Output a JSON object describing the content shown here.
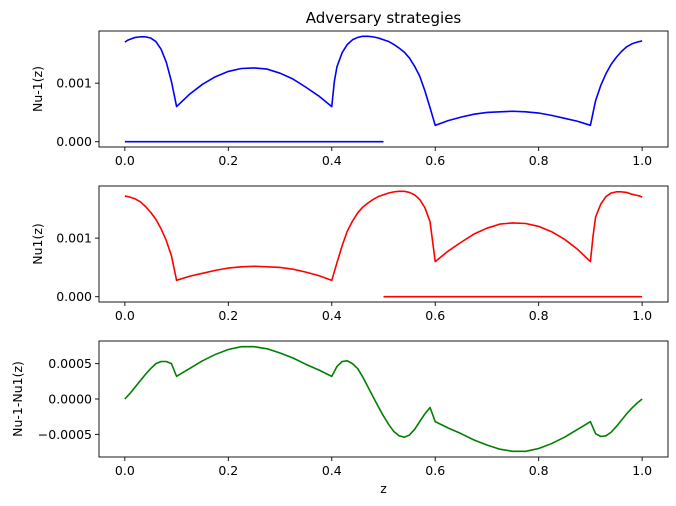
{
  "chart_data": [
    {
      "type": "line",
      "title": "Adversary strategies",
      "xlabel": "",
      "ylabel": "Nu-1(z)",
      "xlim": [
        -0.05,
        1.05
      ],
      "ylim": [
        -9e-05,
        0.00189
      ],
      "xticks": [
        0.0,
        0.2,
        0.4,
        0.6,
        0.8,
        1.0
      ],
      "xtick_labels": [
        "0.0",
        "0.2",
        "0.4",
        "0.6",
        "0.8",
        "1.0"
      ],
      "yticks": [
        0.0,
        0.001
      ],
      "ytick_labels": [
        "0.000",
        "0.001"
      ],
      "grid": false,
      "color": "#0000ff",
      "series": [
        {
          "x": [
            0.0,
            0.005,
            0.01,
            0.02,
            0.03,
            0.04,
            0.05,
            0.06,
            0.07,
            0.08,
            0.09,
            0.1,
            0.1,
            0.125,
            0.15,
            0.175,
            0.2,
            0.225,
            0.25,
            0.275,
            0.3,
            0.325,
            0.35,
            0.375,
            0.4,
            0.4,
            0.405,
            0.41,
            0.42,
            0.43,
            0.44,
            0.45,
            0.46,
            0.47,
            0.48,
            0.49,
            0.5,
            0.51,
            0.52,
            0.53,
            0.54,
            0.55,
            0.56,
            0.57,
            0.58,
            0.59,
            0.6,
            0.6,
            0.625,
            0.65,
            0.675,
            0.7,
            0.725,
            0.75,
            0.775,
            0.8,
            0.825,
            0.85,
            0.875,
            0.9,
            0.9,
            0.91,
            0.92,
            0.93,
            0.94,
            0.95,
            0.96,
            0.97,
            0.98,
            0.99,
            1.0
          ],
          "y": [
            0.0017,
            0.00173,
            0.00175,
            0.00178,
            0.00179,
            0.00179,
            0.00177,
            0.00171,
            0.00158,
            0.00136,
            0.00103,
            0.0006,
            0.0006,
            0.00081,
            0.00098,
            0.00111,
            0.0012,
            0.00125,
            0.00126,
            0.00124,
            0.00117,
            0.00107,
            0.00093,
            0.00078,
            0.0006,
            0.0006,
            0.00103,
            0.00128,
            0.00152,
            0.00166,
            0.00174,
            0.00178,
            0.0018,
            0.0018,
            0.00179,
            0.00177,
            0.00174,
            0.00171,
            0.00166,
            0.0016,
            0.00153,
            0.00143,
            0.00129,
            0.00112,
            0.00087,
            0.00058,
            0.00028,
            0.00028,
            0.00036,
            0.00042,
            0.00047,
            0.0005,
            0.00051,
            0.00052,
            0.00051,
            0.00049,
            0.00045,
            0.0004,
            0.00035,
            0.00028,
            0.00028,
            0.0007,
            0.00096,
            0.00116,
            0.00132,
            0.00144,
            0.00154,
            0.00162,
            0.00167,
            0.0017,
            0.00172
          ]
        },
        {
          "x": [
            0.0,
            0.5
          ],
          "y": [
            0.0,
            0.0
          ]
        }
      ]
    },
    {
      "type": "line",
      "title": "",
      "xlabel": "",
      "ylabel": "Nu1(z)",
      "xlim": [
        -0.05,
        1.05
      ],
      "ylim": [
        -9e-05,
        0.00189
      ],
      "xticks": [
        0.0,
        0.2,
        0.4,
        0.6,
        0.8,
        1.0
      ],
      "xtick_labels": [
        "0.0",
        "0.2",
        "0.4",
        "0.6",
        "0.8",
        "1.0"
      ],
      "yticks": [
        0.0,
        0.001
      ],
      "ytick_labels": [
        "0.000",
        "0.001"
      ],
      "grid": false,
      "color": "#ff0000",
      "series": [
        {
          "x": [
            0.0,
            0.01,
            0.02,
            0.03,
            0.04,
            0.05,
            0.06,
            0.07,
            0.08,
            0.09,
            0.1,
            0.1,
            0.125,
            0.15,
            0.175,
            0.2,
            0.225,
            0.25,
            0.275,
            0.3,
            0.325,
            0.35,
            0.375,
            0.4,
            0.4,
            0.41,
            0.42,
            0.43,
            0.44,
            0.45,
            0.46,
            0.47,
            0.48,
            0.49,
            0.5,
            0.51,
            0.52,
            0.53,
            0.54,
            0.55,
            0.56,
            0.57,
            0.58,
            0.59,
            0.6,
            0.6,
            0.625,
            0.65,
            0.675,
            0.7,
            0.725,
            0.75,
            0.775,
            0.8,
            0.825,
            0.85,
            0.875,
            0.9,
            0.9,
            0.905,
            0.91,
            0.92,
            0.93,
            0.94,
            0.95,
            0.96,
            0.97,
            0.98,
            0.99,
            0.995,
            1.0
          ],
          "y": [
            0.00172,
            0.0017,
            0.00167,
            0.00162,
            0.00154,
            0.00144,
            0.00132,
            0.00116,
            0.00096,
            0.0007,
            0.00028,
            0.00028,
            0.00035,
            0.0004,
            0.00045,
            0.00049,
            0.00051,
            0.00052,
            0.00051,
            0.0005,
            0.00047,
            0.00042,
            0.00036,
            0.00028,
            0.00028,
            0.00058,
            0.00087,
            0.00112,
            0.00129,
            0.00143,
            0.00153,
            0.0016,
            0.00166,
            0.00171,
            0.00174,
            0.00177,
            0.00179,
            0.0018,
            0.0018,
            0.00178,
            0.00174,
            0.00166,
            0.00152,
            0.00128,
            0.0006,
            0.0006,
            0.00078,
            0.00093,
            0.00107,
            0.00117,
            0.00124,
            0.00126,
            0.00125,
            0.0012,
            0.00111,
            0.00098,
            0.00081,
            0.0006,
            0.0006,
            0.00103,
            0.00136,
            0.00158,
            0.00171,
            0.00177,
            0.00179,
            0.00179,
            0.00178,
            0.00175,
            0.00173,
            0.00172,
            0.0017
          ]
        },
        {
          "x": [
            0.5,
            1.0
          ],
          "y": [
            0.0,
            0.0
          ]
        }
      ]
    },
    {
      "type": "line",
      "title": "",
      "xlabel": "z",
      "ylabel": "Nu-1-Nu1(z)",
      "xlim": [
        -0.05,
        1.05
      ],
      "ylim": [
        -0.00082,
        0.00082
      ],
      "xticks": [
        0.0,
        0.2,
        0.4,
        0.6,
        0.8,
        1.0
      ],
      "xtick_labels": [
        "0.0",
        "0.2",
        "0.4",
        "0.6",
        "0.8",
        "1.0"
      ],
      "yticks": [
        0.0005,
        0.0,
        -0.0005
      ],
      "ytick_labels": [
        "0.0005",
        "0.0000",
        "−0.0005"
      ],
      "grid": false,
      "color": "#008000",
      "series": [
        {
          "x": [
            0.0,
            0.01,
            0.02,
            0.03,
            0.04,
            0.05,
            0.06,
            0.07,
            0.08,
            0.09,
            0.1,
            0.1,
            0.125,
            0.15,
            0.175,
            0.2,
            0.225,
            0.25,
            0.275,
            0.3,
            0.325,
            0.35,
            0.375,
            0.4,
            0.4,
            0.41,
            0.42,
            0.43,
            0.44,
            0.45,
            0.46,
            0.47,
            0.48,
            0.49,
            0.5,
            0.51,
            0.52,
            0.53,
            0.54,
            0.55,
            0.56,
            0.57,
            0.58,
            0.59,
            0.6,
            0.6,
            0.625,
            0.65,
            0.675,
            0.7,
            0.725,
            0.75,
            0.775,
            0.8,
            0.825,
            0.85,
            0.875,
            0.9,
            0.9,
            0.91,
            0.92,
            0.93,
            0.94,
            0.95,
            0.96,
            0.97,
            0.98,
            0.99,
            1.0
          ],
          "y": [
            0.0,
            8e-05,
            0.00017,
            0.00026,
            0.00035,
            0.00043,
            0.0005,
            0.00053,
            0.00053,
            0.0005,
            0.00032,
            0.00032,
            0.00043,
            0.00054,
            0.00063,
            0.0007,
            0.00074,
            0.00074,
            0.00071,
            0.00065,
            0.00058,
            0.00049,
            0.00041,
            0.00032,
            0.00032,
            0.00046,
            0.00053,
            0.00054,
            0.0005,
            0.00043,
            0.00031,
            0.00017,
            3e-05,
            -0.00011,
            -0.00024,
            -0.00036,
            -0.00046,
            -0.00052,
            -0.00054,
            -0.00051,
            -0.00043,
            -0.00032,
            -0.00021,
            -0.00012,
            -0.00032,
            -0.00032,
            -0.00041,
            -0.00049,
            -0.00058,
            -0.00065,
            -0.00071,
            -0.00074,
            -0.00074,
            -0.0007,
            -0.00063,
            -0.00054,
            -0.00043,
            -0.00032,
            -0.00032,
            -0.00049,
            -0.00053,
            -0.00052,
            -0.00047,
            -0.00039,
            -0.0003,
            -0.00021,
            -0.00013,
            -6e-05,
            0.0
          ]
        }
      ]
    }
  ]
}
